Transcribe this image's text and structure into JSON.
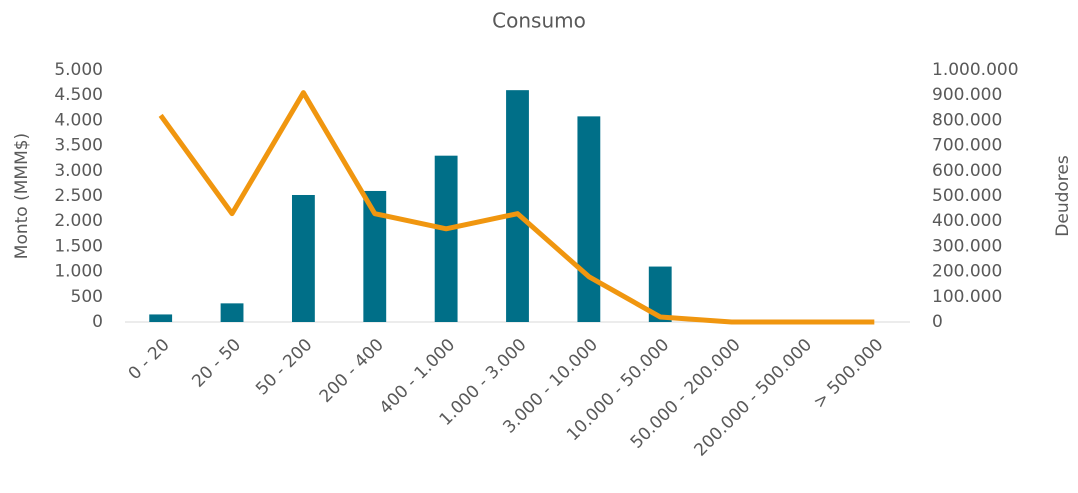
{
  "chart_data": {
    "type": "combo",
    "title": "Consumo",
    "y_label": "Monto (MMM$)",
    "y2_label": "Deudores",
    "categories": [
      "0 - 20",
      "20 - 50",
      "50 - 200",
      "200 - 400",
      "400 - 1.000",
      "1.000 - 3.000",
      "3.000 - 10.000",
      "10.000 - 50.000",
      "50.000 - 200.000",
      "200.000 - 500.000",
      "> 500.000"
    ],
    "series": [
      {
        "type": "bar",
        "color": "#006f88",
        "values": [
          150,
          370,
          2520,
          2600,
          3300,
          4600,
          4080,
          1100,
          0,
          0,
          0
        ]
      },
      {
        "type": "line",
        "axis": "y2",
        "color": "#f0960f",
        "values": [
          820000,
          430000,
          910000,
          430000,
          370000,
          430000,
          180000,
          20000,
          0,
          0,
          0
        ]
      }
    ],
    "ylim": [
      0,
      5000
    ],
    "yticks": [
      0,
      500,
      {
        "value": 1000,
        "label": "1.000"
      },
      {
        "value": 1500,
        "label": "1.500"
      },
      {
        "value": 2000,
        "label": "2.000"
      },
      {
        "value": 2500,
        "label": "2.500"
      },
      {
        "value": 3000,
        "label": "3.000"
      },
      {
        "value": 3500,
        "label": "3.500"
      },
      {
        "value": 4000,
        "label": "4.000"
      },
      {
        "value": 4500,
        "label": "4.500"
      },
      {
        "value": 5000,
        "label": "5.000"
      }
    ],
    "y2lim": [
      0,
      1000000
    ],
    "y2ticks": [
      0,
      {
        "value": 100000,
        "label": "100.000"
      },
      {
        "value": 200000,
        "label": "200.000"
      },
      {
        "value": 300000,
        "label": "300.000"
      },
      {
        "value": 400000,
        "label": "400.000"
      },
      {
        "value": 500000,
        "label": "500.000"
      },
      {
        "value": 600000,
        "label": "600.000"
      },
      {
        "value": 700000,
        "label": "700.000"
      },
      {
        "value": 800000,
        "label": "800.000"
      },
      {
        "value": 900000,
        "label": "900.000"
      },
      {
        "value": 1000000,
        "label": "1.000.000"
      }
    ]
  }
}
